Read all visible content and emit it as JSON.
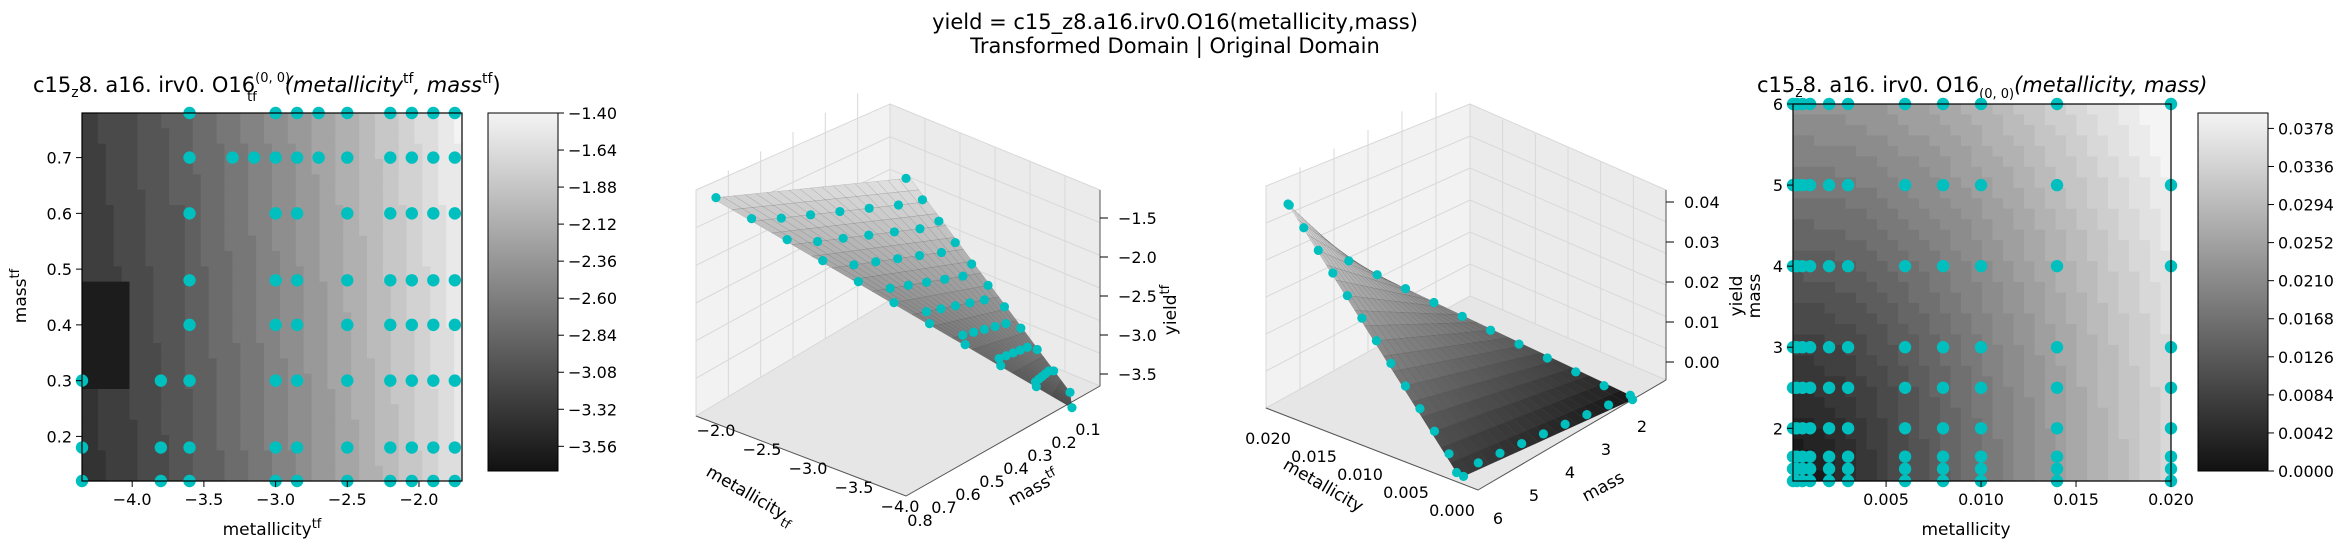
{
  "figure": {
    "title_line1": "yield = c15_z8.a16.irv0.O16(metallicity,mass)",
    "title_line2": "Transformed Domain | Original Domain"
  },
  "colors": {
    "points": "#00bfbf",
    "cmap_low": "#111111",
    "cmap_high": "#f4f4f4"
  },
  "chart_data": [
    {
      "type": "heatmap",
      "name": "transformed-contour",
      "title_prefix": "c15",
      "title_sub1": "z",
      "title_mid": "8. a16. irv0. O16",
      "title_sup2": "(0, 0)",
      "title_sub2": "tf",
      "title_args": "(metallicity",
      "title_args_sup1": "tf",
      "title_args2": ", mass",
      "title_args_sup2": "tf",
      "title_args_end": ")",
      "xlabel": "metallicity",
      "xlabel_sup": "tf",
      "ylabel": "mass",
      "ylabel_sup": "tf",
      "xlim": [
        -4.35,
        -1.7
      ],
      "ylim": [
        0.12,
        0.78
      ],
      "xticks": [
        -4.0,
        -3.5,
        -3.0,
        -2.5,
        -2.0
      ],
      "xtick_labels": [
        "−4.0",
        "−3.5",
        "−3.0",
        "−2.5",
        "−2.0"
      ],
      "yticks": [
        0.2,
        0.3,
        0.4,
        0.5,
        0.6,
        0.7
      ],
      "ytick_labels": [
        "0.2",
        "0.3",
        "0.4",
        "0.5",
        "0.6",
        "0.7"
      ],
      "zlim": [
        -3.72,
        -1.4
      ],
      "colorbar_ticks": [
        -1.4,
        -1.64,
        -1.88,
        -2.12,
        -2.36,
        -2.6,
        -2.84,
        -3.08,
        -3.32,
        -3.56
      ],
      "colorbar_labels": [
        "−1.40",
        "−1.64",
        "−1.88",
        "−2.12",
        "−2.36",
        "−2.60",
        "−2.84",
        "−3.08",
        "−3.32",
        "−3.56"
      ],
      "points_x": [
        -4.35,
        -4.0,
        -3.7,
        -3.6,
        -3.3,
        -3.15,
        -3.05,
        -2.8,
        -2.7,
        -2.5,
        -2.2,
        -2.0,
        -1.9,
        -1.7
      ],
      "points_y": [
        0.78,
        0.7,
        0.6,
        0.48,
        0.4,
        0.3,
        0.18,
        0.12
      ],
      "points_row_x": [
        [
          -3.6,
          -3.0,
          -2.85,
          -2.7,
          -2.5,
          -2.2,
          -2.05,
          -1.9,
          -1.75
        ],
        [
          -3.6,
          -3.3,
          -3.15,
          -3.0,
          -2.85,
          -2.7,
          -2.5,
          -2.2,
          -2.05,
          -1.9,
          -1.75
        ],
        [
          -3.6,
          -3.0,
          -2.85,
          -2.5,
          -2.2,
          -2.05,
          -1.9,
          -1.75
        ],
        [
          -3.6,
          -3.0,
          -2.85,
          -2.5,
          -2.2,
          -2.05,
          -1.9,
          -1.75
        ],
        [
          -3.6,
          -3.0,
          -2.85,
          -2.5,
          -2.2,
          -2.05,
          -1.9,
          -1.75
        ],
        [
          -4.35,
          -3.8,
          -3.6,
          -3.0,
          -2.85,
          -2.5,
          -2.2,
          -2.05,
          -1.9,
          -1.75
        ],
        [
          -4.35,
          -3.8,
          -3.6,
          -3.0,
          -2.85,
          -2.5,
          -2.2,
          -2.05,
          -1.9,
          -1.75
        ],
        [
          -4.35,
          -3.8,
          -3.6,
          -3.0,
          -2.85,
          -2.5,
          -2.2,
          -2.05,
          -1.9,
          -1.75
        ]
      ]
    },
    {
      "type": "surface3d",
      "name": "transformed-surface",
      "xlabel": "metallicity",
      "xlabel_sub": "tf",
      "ylabel": "mass",
      "ylabel_sup": "tf",
      "zlabel": "yield",
      "zlabel_sup": "tf",
      "xtick_labels": [
        "−2.0",
        "−2.5",
        "−3.0",
        "−3.5",
        "−4.0"
      ],
      "ytick_labels": [
        "0.8",
        "0.7",
        "0.6",
        "0.5",
        "0.4",
        "0.3",
        "0.2",
        "0.1"
      ],
      "ztick_labels": [
        "−1.5",
        "−2.0",
        "−2.5",
        "−3.0",
        "−3.5"
      ]
    },
    {
      "type": "surface3d",
      "name": "original-surface",
      "xlabel": "metallicity",
      "ylabel": "mass",
      "zlabel": "yield",
      "xtick_labels": [
        "0.020",
        "0.015",
        "0.010",
        "0.005",
        "0.000"
      ],
      "ytick_labels": [
        "6",
        "5",
        "4",
        "3",
        "2"
      ],
      "ztick_labels": [
        "0.04",
        "0.03",
        "0.02",
        "0.01",
        "0.00"
      ]
    },
    {
      "type": "heatmap",
      "name": "original-contour",
      "title_prefix": "c15",
      "title_sub1": "z",
      "title_mid": "8. a16. irv0. O16",
      "title_sub2": "(0, 0)",
      "title_args": "(metallicity, mass)",
      "xlabel": "metallicity",
      "ylabel": "mass",
      "xlim": [
        0.0001,
        0.02
      ],
      "ylim": [
        1.35,
        6.0
      ],
      "xticks": [
        0.005,
        0.01,
        0.015,
        0.02
      ],
      "xtick_labels": [
        "0.005",
        "0.010",
        "0.015",
        "0.020"
      ],
      "yticks": [
        2,
        3,
        4,
        5,
        6
      ],
      "ytick_labels": [
        "2",
        "3",
        "4",
        "5",
        "6"
      ],
      "zlim": [
        0.0,
        0.0395
      ],
      "colorbar_ticks": [
        0.0,
        0.0042,
        0.0084,
        0.0126,
        0.0168,
        0.021,
        0.0252,
        0.0294,
        0.0336,
        0.0378
      ],
      "colorbar_labels": [
        "0.0000",
        "0.0042",
        "0.0084",
        "0.0126",
        "0.0168",
        "0.0210",
        "0.0252",
        "0.0294",
        "0.0336",
        "0.0378"
      ],
      "points_x": [
        0.0001,
        0.0003,
        0.0006,
        0.001,
        0.002,
        0.003,
        0.006,
        0.008,
        0.01,
        0.014,
        0.02
      ],
      "points_y": [
        6.0,
        5.0,
        4.0,
        3.0,
        2.5,
        2.0,
        1.65,
        1.5,
        1.35
      ]
    }
  ]
}
